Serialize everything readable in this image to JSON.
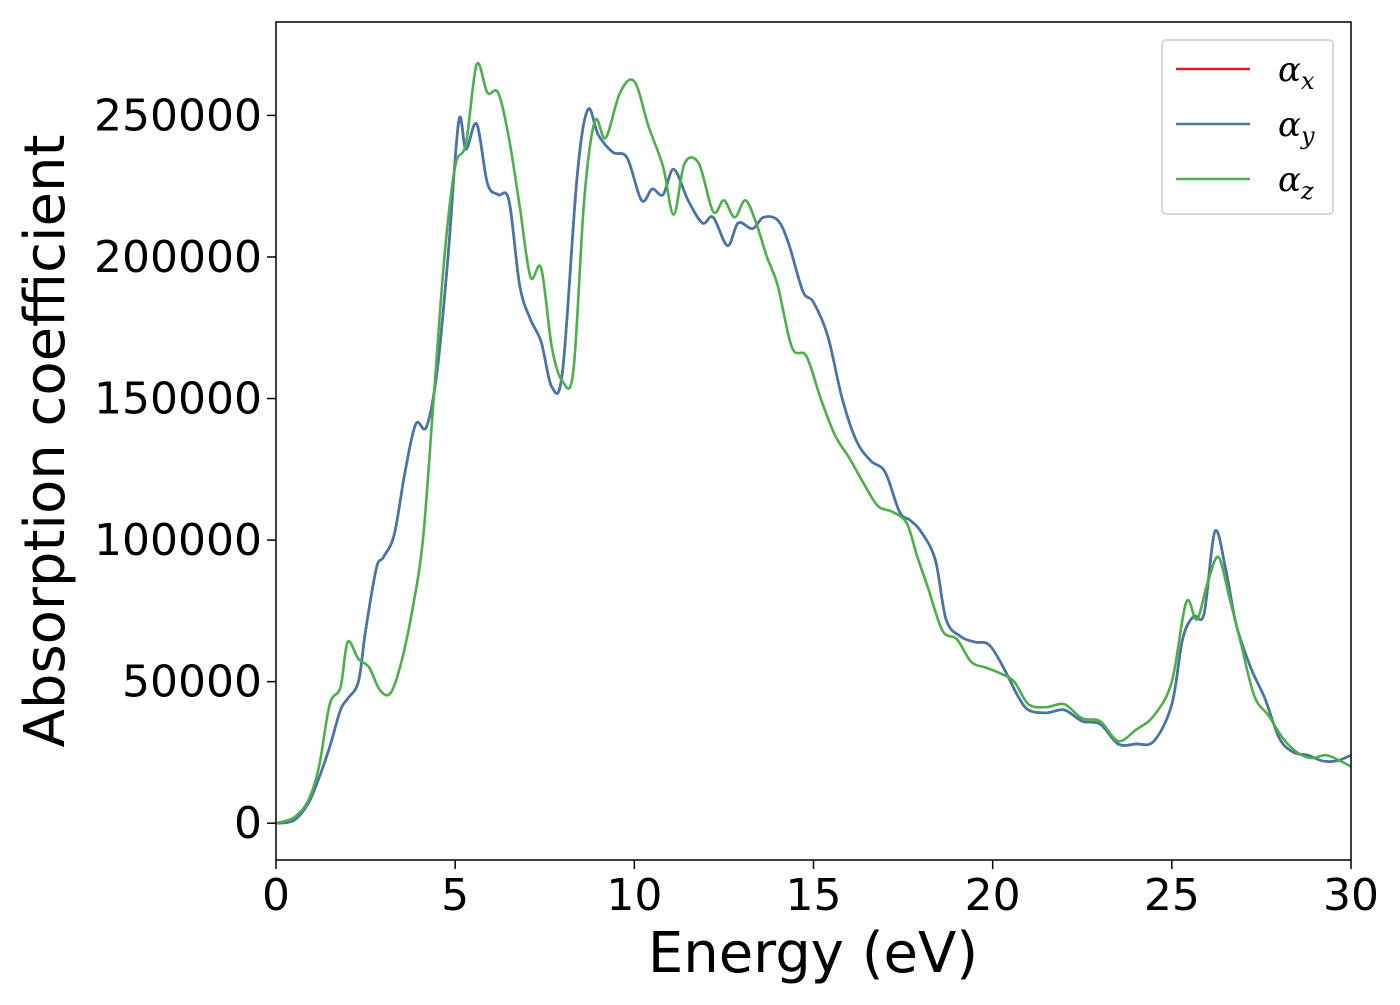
{
  "chart_data": {
    "type": "line",
    "title": "",
    "xlabel": "Energy (eV)",
    "ylabel": "Absorption coefficient",
    "xlim": [
      0,
      30
    ],
    "ylim": [
      -13000,
      283000
    ],
    "xticks": [
      0,
      5,
      10,
      15,
      20,
      25,
      30
    ],
    "xtick_labels": [
      "0",
      "5",
      "10",
      "15",
      "20",
      "25",
      "30"
    ],
    "yticks": [
      0,
      50000,
      100000,
      150000,
      200000,
      250000
    ],
    "ytick_labels": [
      "0",
      "50000",
      "100000",
      "150000",
      "200000",
      "250000"
    ],
    "grid": false,
    "legend_position": "top-right",
    "series": [
      {
        "name": "α",
        "subscript": "x",
        "color": "#e41a1c",
        "x": [
          0,
          0.5,
          0.9,
          1.2,
          1.5,
          1.8,
          2.0,
          2.3,
          2.5,
          2.8,
          3.0,
          3.3,
          3.6,
          3.9,
          4.2,
          4.5,
          4.8,
          5.1,
          5.3,
          5.6,
          5.9,
          6.2,
          6.5,
          6.8,
          7.1,
          7.4,
          7.7,
          8.0,
          8.4,
          8.7,
          9.0,
          9.4,
          9.8,
          10.2,
          10.5,
          10.8,
          11.1,
          11.5,
          11.9,
          12.2,
          12.6,
          12.9,
          13.3,
          13.6,
          14.0,
          14.3,
          14.7,
          15.0,
          15.4,
          15.8,
          16.2,
          16.6,
          17.0,
          17.4,
          17.7,
          18.0,
          18.4,
          18.7,
          19.1,
          19.5,
          19.9,
          20.3,
          20.7,
          21.0,
          21.5,
          22.0,
          22.5,
          23.0,
          23.5,
          24.0,
          24.5,
          25.0,
          25.3,
          25.6,
          25.9,
          26.2,
          26.5,
          26.8,
          27.2,
          27.6,
          28.0,
          28.4,
          28.8,
          29.2,
          29.6,
          30.0
        ],
        "y": [
          0,
          1000,
          7000,
          16000,
          27000,
          40000,
          44000,
          50000,
          68000,
          90000,
          94000,
          102000,
          124000,
          141000,
          140000,
          160000,
          200000,
          248000,
          238000,
          247000,
          226000,
          222000,
          220000,
          190000,
          178000,
          170000,
          154000,
          160000,
          228000,
          252000,
          243000,
          237000,
          235000,
          220000,
          224000,
          222000,
          231000,
          220000,
          212000,
          214000,
          204000,
          212000,
          210000,
          214000,
          213000,
          205000,
          188000,
          184000,
          172000,
          150000,
          135000,
          128000,
          124000,
          110000,
          107000,
          103000,
          93000,
          72000,
          66000,
          64000,
          63000,
          55000,
          45000,
          40000,
          39000,
          40000,
          36000,
          35000,
          28000,
          28000,
          29000,
          42000,
          65000,
          73000,
          74000,
          103000,
          90000,
          70000,
          55000,
          44000,
          30000,
          25000,
          24000,
          22000,
          22000,
          24000
        ]
      },
      {
        "name": "α",
        "subscript": "y",
        "color": "#4377a9",
        "x": [
          0,
          0.5,
          0.9,
          1.2,
          1.5,
          1.8,
          2.0,
          2.3,
          2.5,
          2.8,
          3.0,
          3.3,
          3.6,
          3.9,
          4.2,
          4.5,
          4.8,
          5.1,
          5.3,
          5.6,
          5.9,
          6.2,
          6.5,
          6.8,
          7.1,
          7.4,
          7.7,
          8.0,
          8.4,
          8.7,
          9.0,
          9.4,
          9.8,
          10.2,
          10.5,
          10.8,
          11.1,
          11.5,
          11.9,
          12.2,
          12.6,
          12.9,
          13.3,
          13.6,
          14.0,
          14.3,
          14.7,
          15.0,
          15.4,
          15.8,
          16.2,
          16.6,
          17.0,
          17.4,
          17.7,
          18.0,
          18.4,
          18.7,
          19.1,
          19.5,
          19.9,
          20.3,
          20.7,
          21.0,
          21.5,
          22.0,
          22.5,
          23.0,
          23.5,
          24.0,
          24.5,
          25.0,
          25.3,
          25.6,
          25.9,
          26.2,
          26.5,
          26.8,
          27.2,
          27.6,
          28.0,
          28.4,
          28.8,
          29.2,
          29.6,
          30.0
        ],
        "y": [
          0,
          1000,
          7000,
          16000,
          27000,
          40000,
          44000,
          50000,
          68000,
          90000,
          94000,
          102000,
          124000,
          141000,
          140000,
          160000,
          200000,
          248000,
          238000,
          247000,
          226000,
          222000,
          220000,
          190000,
          178000,
          170000,
          154000,
          160000,
          228000,
          252000,
          243000,
          237000,
          235000,
          220000,
          224000,
          222000,
          231000,
          220000,
          212000,
          214000,
          204000,
          212000,
          210000,
          214000,
          213000,
          205000,
          188000,
          184000,
          172000,
          150000,
          135000,
          128000,
          124000,
          110000,
          107000,
          103000,
          93000,
          72000,
          66000,
          64000,
          63000,
          55000,
          45000,
          40000,
          39000,
          40000,
          36000,
          35000,
          28000,
          28000,
          29000,
          42000,
          65000,
          73000,
          74000,
          103000,
          90000,
          70000,
          55000,
          44000,
          30000,
          25000,
          24000,
          22000,
          22000,
          24000
        ]
      },
      {
        "name": "α",
        "subscript": "z",
        "color": "#4daf4a",
        "x": [
          0,
          0.5,
          0.9,
          1.2,
          1.5,
          1.8,
          2.0,
          2.3,
          2.6,
          2.9,
          3.2,
          3.5,
          3.8,
          4.1,
          4.4,
          4.7,
          5.0,
          5.3,
          5.6,
          5.9,
          6.2,
          6.5,
          6.8,
          7.1,
          7.4,
          7.7,
          8.0,
          8.3,
          8.6,
          8.9,
          9.2,
          9.6,
          10.0,
          10.4,
          10.8,
          11.1,
          11.4,
          11.8,
          12.2,
          12.5,
          12.8,
          13.1,
          13.4,
          13.7,
          14.0,
          14.4,
          14.8,
          15.2,
          15.6,
          16.0,
          16.4,
          16.8,
          17.2,
          17.6,
          17.9,
          18.2,
          18.6,
          19.0,
          19.4,
          19.8,
          20.2,
          20.6,
          21.0,
          21.5,
          22.0,
          22.5,
          23.0,
          23.5,
          24.0,
          24.5,
          25.0,
          25.4,
          25.7,
          26.0,
          26.3,
          26.6,
          26.9,
          27.3,
          27.7,
          28.1,
          28.5,
          28.9,
          29.3,
          29.7,
          30.0
        ],
        "y": [
          0,
          2000,
          8000,
          20000,
          42000,
          48000,
          64000,
          58000,
          55000,
          47000,
          46000,
          57000,
          75000,
          100000,
          150000,
          200000,
          232000,
          240000,
          268000,
          258000,
          258000,
          242000,
          218000,
          193000,
          196000,
          168000,
          156000,
          160000,
          220000,
          248000,
          242000,
          258000,
          262000,
          246000,
          232000,
          215000,
          233000,
          233000,
          216000,
          220000,
          214000,
          220000,
          212000,
          200000,
          190000,
          168000,
          165000,
          150000,
          137000,
          129000,
          120000,
          112000,
          110000,
          106000,
          94000,
          83000,
          68000,
          65000,
          57000,
          55000,
          53000,
          50000,
          42000,
          41000,
          42000,
          37000,
          36000,
          29000,
          33000,
          38000,
          50000,
          78000,
          72000,
          85000,
          94000,
          80000,
          65000,
          45000,
          38000,
          30000,
          25000,
          23000,
          24000,
          22000,
          20000
        ]
      }
    ]
  }
}
